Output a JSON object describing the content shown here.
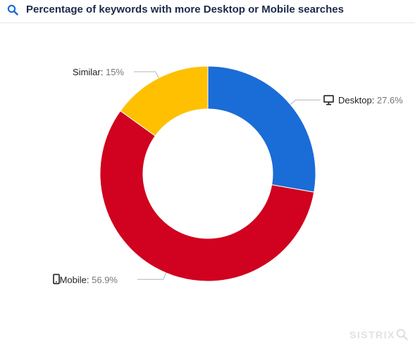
{
  "header": {
    "title": "Percentage of keywords with more Desktop or Mobile searches",
    "icon": "search-icon"
  },
  "branding": {
    "text": "SISTRIX"
  },
  "chart_data": {
    "type": "pie",
    "variant": "donut",
    "title": "Percentage of keywords with more Desktop or Mobile searches",
    "start_angle_deg": 0,
    "direction": "clockwise",
    "slices": [
      {
        "label": "Desktop",
        "value": 27.6,
        "value_text": "27.6%",
        "color": "#1a6cd6",
        "icon": "desktop-icon"
      },
      {
        "label": "Mobile",
        "value": 56.9,
        "value_text": "56.9%",
        "color": "#d0021f",
        "icon": "mobile-icon"
      },
      {
        "label": "Similar",
        "value": 15,
        "value_text": "15%",
        "color": "#fec000",
        "icon": ""
      }
    ]
  }
}
